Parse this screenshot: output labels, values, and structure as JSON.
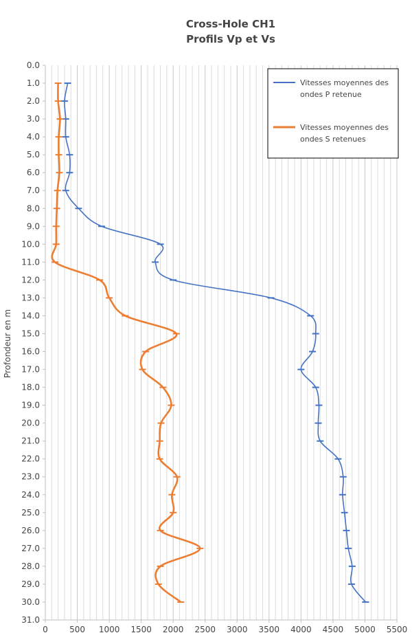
{
  "chart_data": {
    "type": "line",
    "title": "Cross-Hole  CH1",
    "subtitle": "Profils   Vp et Vs",
    "ylabel": "Profondeur  en   m",
    "xlabel": "",
    "xlim": [
      0,
      5500
    ],
    "ylim": [
      0,
      31
    ],
    "y_inverted": true,
    "x_ticks": [
      "0",
      "500",
      "1000",
      "1500",
      "2000",
      "2500",
      "3000",
      "3500",
      "4000",
      "4500",
      "5000",
      "5500"
    ],
    "y_ticks": [
      "0.0",
      "1.0",
      "2.0",
      "3.0",
      "4.0",
      "5.0",
      "6.0",
      "7.0",
      "8.0",
      "9.0",
      "10.0",
      "11.0",
      "12.0",
      "13.0",
      "14.0",
      "15.0",
      "16.0",
      "17.0",
      "18.0",
      "19.0",
      "20.0",
      "21.0",
      "22.0",
      "23.0",
      "24.0",
      "25.0",
      "26.0",
      "27.0",
      "28.0",
      "29.0",
      "30.0",
      "31.0"
    ],
    "grid": "vertical",
    "legend_position": "top-right",
    "series": [
      {
        "name": "Vitesses moyennes des ondes P retenue",
        "color": "#4472c4",
        "points": [
          [
            350,
            1
          ],
          [
            300,
            2
          ],
          [
            320,
            3
          ],
          [
            320,
            4
          ],
          [
            380,
            5
          ],
          [
            380,
            6
          ],
          [
            320,
            7
          ],
          [
            520,
            8
          ],
          [
            880,
            9
          ],
          [
            1800,
            10
          ],
          [
            1720,
            11
          ],
          [
            2000,
            12
          ],
          [
            3530,
            13
          ],
          [
            4150,
            14
          ],
          [
            4230,
            15
          ],
          [
            4180,
            16
          ],
          [
            4000,
            17
          ],
          [
            4230,
            18
          ],
          [
            4280,
            19
          ],
          [
            4270,
            20
          ],
          [
            4300,
            21
          ],
          [
            4580,
            22
          ],
          [
            4660,
            23
          ],
          [
            4650,
            24
          ],
          [
            4680,
            25
          ],
          [
            4710,
            26
          ],
          [
            4740,
            27
          ],
          [
            4800,
            28
          ],
          [
            4790,
            29
          ],
          [
            5010,
            30
          ]
        ]
      },
      {
        "name": "Vitesses moyennes des ondes S retenues",
        "color": "#ed7d31",
        "points": [
          [
            200,
            1
          ],
          [
            200,
            2
          ],
          [
            230,
            3
          ],
          [
            210,
            4
          ],
          [
            210,
            5
          ],
          [
            220,
            6
          ],
          [
            190,
            7
          ],
          [
            180,
            8
          ],
          [
            170,
            9
          ],
          [
            170,
            10
          ],
          [
            150,
            11
          ],
          [
            850,
            12
          ],
          [
            1000,
            13
          ],
          [
            1250,
            14
          ],
          [
            2050,
            15
          ],
          [
            1570,
            16
          ],
          [
            1520,
            17
          ],
          [
            1840,
            18
          ],
          [
            1970,
            19
          ],
          [
            1810,
            20
          ],
          [
            1790,
            21
          ],
          [
            1790,
            22
          ],
          [
            2060,
            23
          ],
          [
            1980,
            24
          ],
          [
            2000,
            25
          ],
          [
            1800,
            26
          ],
          [
            2420,
            27
          ],
          [
            1800,
            28
          ],
          [
            1770,
            29
          ],
          [
            2120,
            30
          ]
        ]
      }
    ]
  }
}
